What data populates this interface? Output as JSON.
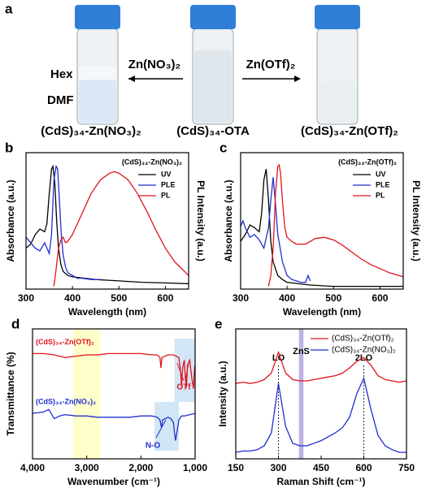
{
  "panel_a": {
    "label": "a",
    "solvents": [
      "Hex",
      "DMF"
    ],
    "reagents": [
      "Zn(NO₃)₂",
      "Zn(OTf)₂"
    ],
    "samples": [
      "(CdS)₃₄-Zn(NO₃)₂",
      "(CdS)₃₄-OTA",
      "(CdS)₃₄-Zn(OTf)₂"
    ]
  },
  "chart_data": [
    {
      "type": "line",
      "label": "b",
      "x_label": "Wavelength (nm)",
      "y_label": "Absorbance (a.u.)",
      "y2_label": "PL Intensity (a.u.)",
      "xlim": [
        300,
        650
      ],
      "xticks": [
        300,
        400,
        500,
        600
      ],
      "ylim": [
        0,
        1
      ],
      "legend": "upper right",
      "legend_title": "(CdS)₃₄-Zn(NO₃)₂",
      "series": [
        {
          "name": "UV",
          "color": "#000000",
          "x": [
            300,
            310,
            320,
            330,
            340,
            345,
            350,
            355,
            358,
            362,
            366,
            370,
            375,
            380,
            390,
            400,
            450,
            500,
            550,
            600,
            650
          ],
          "values": [
            0.3,
            0.33,
            0.4,
            0.44,
            0.42,
            0.48,
            0.7,
            0.88,
            0.9,
            0.78,
            0.5,
            0.3,
            0.18,
            0.13,
            0.1,
            0.09,
            0.07,
            0.06,
            0.05,
            0.045,
            0.04
          ]
        },
        {
          "name": "PLE",
          "color": "#1f2fd0",
          "x": [
            300,
            310,
            320,
            330,
            340,
            350,
            355,
            360,
            365,
            368,
            372,
            376,
            380,
            385,
            390,
            400,
            410,
            420,
            440,
            460
          ],
          "values": [
            0.38,
            0.34,
            0.3,
            0.28,
            0.34,
            0.26,
            0.4,
            0.8,
            0.9,
            0.88,
            0.65,
            0.4,
            0.25,
            0.16,
            0.12,
            0.1,
            0.08,
            0.08,
            0.07,
            0.07
          ]
        },
        {
          "name": "PL",
          "color": "#e0141e",
          "x": [
            360,
            365,
            370,
            375,
            380,
            385,
            390,
            400,
            420,
            440,
            460,
            480,
            490,
            500,
            520,
            540,
            560,
            580,
            600,
            620,
            650
          ],
          "values": [
            0.02,
            0.15,
            0.3,
            0.36,
            0.38,
            0.34,
            0.35,
            0.4,
            0.55,
            0.7,
            0.8,
            0.85,
            0.86,
            0.85,
            0.8,
            0.7,
            0.57,
            0.43,
            0.3,
            0.2,
            0.1
          ]
        }
      ]
    },
    {
      "type": "line",
      "label": "c",
      "x_label": "Wavelength (nm)",
      "y_label": "Absorbance (a.u.)",
      "y2_label": "PL Intensity (a.u.)",
      "xlim": [
        300,
        650
      ],
      "xticks": [
        300,
        400,
        500,
        600
      ],
      "ylim": [
        0,
        1
      ],
      "legend": "upper right",
      "legend_title": "(CdS)₃₄-Zn(OTf)₂",
      "series": [
        {
          "name": "UV",
          "color": "#000000",
          "x": [
            300,
            310,
            320,
            330,
            340,
            345,
            350,
            355,
            360,
            365,
            370,
            380,
            390,
            400,
            450,
            500,
            550,
            600,
            650
          ],
          "values": [
            0.35,
            0.4,
            0.47,
            0.45,
            0.42,
            0.55,
            0.8,
            0.88,
            0.65,
            0.35,
            0.2,
            0.1,
            0.07,
            0.05,
            0.03,
            0.02,
            0.02,
            0.02,
            0.02
          ]
        },
        {
          "name": "PLE",
          "color": "#1f2fd0",
          "x": [
            300,
            305,
            310,
            320,
            330,
            340,
            350,
            360,
            365,
            370,
            375,
            380,
            385,
            390,
            400,
            410,
            420,
            430,
            440,
            445,
            450
          ],
          "values": [
            0.46,
            0.5,
            0.45,
            0.38,
            0.4,
            0.36,
            0.3,
            0.45,
            0.65,
            0.82,
            0.62,
            0.4,
            0.3,
            0.2,
            0.1,
            0.07,
            0.06,
            0.05,
            0.05,
            0.1,
            0.06
          ]
        },
        {
          "name": "PL",
          "color": "#e0141e",
          "x": [
            360,
            365,
            370,
            375,
            380,
            383,
            386,
            390,
            395,
            400,
            410,
            420,
            440,
            460,
            480,
            500,
            520,
            540,
            560,
            580,
            600,
            620,
            650
          ],
          "values": [
            0.02,
            0.1,
            0.3,
            0.7,
            0.9,
            0.91,
            0.85,
            0.65,
            0.45,
            0.38,
            0.35,
            0.33,
            0.33,
            0.37,
            0.38,
            0.36,
            0.32,
            0.27,
            0.22,
            0.18,
            0.15,
            0.12,
            0.09
          ]
        }
      ]
    },
    {
      "type": "line",
      "label": "d",
      "x_label": "Wavenumber (cm⁻¹)",
      "y_label": "Transmittance (%)",
      "xlim": [
        4000,
        1000
      ],
      "xticks": [
        {
          "value": 4000,
          "label": "4,000"
        },
        {
          "value": 3000,
          "label": "3,000"
        },
        {
          "value": 2000,
          "label": "2,000"
        },
        {
          "value": 1000,
          "label": "1,000"
        }
      ],
      "ylim": [
        0,
        1
      ],
      "legend": "none",
      "highlights": [
        {
          "xrange": [
            3250,
            2750
          ],
          "color": "#ffffc4"
        },
        {
          "xrange": [
            1380,
            1000
          ],
          "color": "#cde3f4"
        },
        {
          "xrange": [
            1750,
            1300
          ],
          "color": "#cde3f4"
        }
      ],
      "annotations": [
        "N-O",
        "OTf"
      ],
      "series": [
        {
          "name": "(CdS)₃₄-Zn(OTf)₂",
          "color": "#e0141e",
          "x": [
            4000,
            3800,
            3600,
            3400,
            3200,
            3000,
            2800,
            2600,
            2400,
            2200,
            2000,
            1800,
            1700,
            1650,
            1630,
            1610,
            1500,
            1400,
            1300,
            1270,
            1250,
            1230,
            1200,
            1180,
            1160,
            1140,
            1100,
            1060,
            1030,
            1010,
            1000
          ],
          "values": [
            0.81,
            0.81,
            0.8,
            0.78,
            0.79,
            0.8,
            0.8,
            0.81,
            0.81,
            0.81,
            0.81,
            0.8,
            0.8,
            0.78,
            0.7,
            0.78,
            0.8,
            0.8,
            0.78,
            0.68,
            0.56,
            0.7,
            0.76,
            0.62,
            0.55,
            0.72,
            0.76,
            0.62,
            0.54,
            0.7,
            0.72
          ]
        },
        {
          "name": "(CdS)₃₄-Zn(NO₃)₂",
          "color": "#1f2fd0",
          "x": [
            4000,
            3800,
            3700,
            3600,
            3500,
            3400,
            3200,
            3000,
            2800,
            2600,
            2400,
            2200,
            2000,
            1800,
            1700,
            1650,
            1620,
            1600,
            1500,
            1450,
            1400,
            1380,
            1360,
            1330,
            1300,
            1250,
            1200,
            1100,
            1000
          ],
          "values": [
            0.35,
            0.36,
            0.38,
            0.31,
            0.33,
            0.34,
            0.33,
            0.33,
            0.32,
            0.32,
            0.32,
            0.32,
            0.33,
            0.33,
            0.32,
            0.3,
            0.24,
            0.3,
            0.32,
            0.31,
            0.28,
            0.2,
            0.14,
            0.22,
            0.3,
            0.33,
            0.33,
            0.34,
            0.35
          ]
        }
      ]
    },
    {
      "type": "line",
      "label": "e",
      "x_label": "Raman Shift (cm⁻¹)",
      "y_label": "Intensity (a.u.)",
      "xlim": [
        150,
        750
      ],
      "xticks": [
        150,
        300,
        450,
        600,
        750
      ],
      "ylim": [
        0,
        1
      ],
      "legend": "upper right",
      "highlights": [
        {
          "xrange": [
            372,
            388
          ],
          "color": "#b9a8e0",
          "label": "ZnS"
        }
      ],
      "reference_lines": [
        {
          "x": 300,
          "label": "LO"
        },
        {
          "x": 600,
          "label": "2LO"
        }
      ],
      "series": [
        {
          "name": "(CdS)₃₄-Zn(OTf)₂",
          "color": "#e0141e",
          "x": [
            150,
            175,
            200,
            225,
            250,
            275,
            300,
            325,
            350,
            375,
            400,
            425,
            450,
            475,
            500,
            525,
            550,
            575,
            600,
            625,
            650,
            675,
            700,
            725,
            750
          ],
          "values": [
            0.58,
            0.59,
            0.58,
            0.59,
            0.61,
            0.66,
            0.82,
            0.66,
            0.61,
            0.6,
            0.6,
            0.61,
            0.62,
            0.63,
            0.64,
            0.66,
            0.7,
            0.75,
            0.78,
            0.72,
            0.64,
            0.61,
            0.6,
            0.59,
            0.6
          ]
        },
        {
          "name": "(CdS)₃₄-Zn(NO₃)₂",
          "color": "#1f2fd0",
          "x": [
            150,
            175,
            200,
            225,
            250,
            275,
            300,
            325,
            350,
            375,
            400,
            425,
            450,
            475,
            500,
            525,
            550,
            575,
            600,
            625,
            650,
            675,
            700,
            725,
            750
          ],
          "values": [
            0.05,
            0.06,
            0.06,
            0.07,
            0.1,
            0.2,
            0.58,
            0.25,
            0.12,
            0.1,
            0.1,
            0.12,
            0.14,
            0.17,
            0.2,
            0.24,
            0.32,
            0.5,
            0.62,
            0.38,
            0.18,
            0.1,
            0.07,
            0.05,
            0.05
          ]
        }
      ]
    }
  ]
}
